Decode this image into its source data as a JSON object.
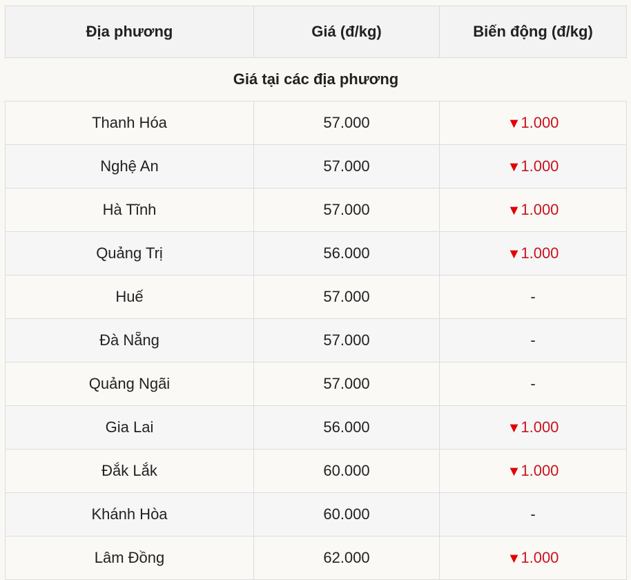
{
  "header": {
    "col1": "Địa phương",
    "col2": "Giá (đ/kg)",
    "col3": "Biến động (đ/kg)"
  },
  "section_title": "Giá tại các địa phương",
  "colors": {
    "down": "#e00000"
  },
  "rows": [
    {
      "place": "Thanh Hóa",
      "price": "57.000",
      "change": "1.000",
      "direction": "down"
    },
    {
      "place": "Nghệ An",
      "price": "57.000",
      "change": "1.000",
      "direction": "down"
    },
    {
      "place": "Hà Tĩnh",
      "price": "57.000",
      "change": "1.000",
      "direction": "down"
    },
    {
      "place": "Quảng Trị",
      "price": "56.000",
      "change": "1.000",
      "direction": "down"
    },
    {
      "place": "Huế",
      "price": "57.000",
      "change": "-",
      "direction": "none"
    },
    {
      "place": "Đà Nẵng",
      "price": "57.000",
      "change": "-",
      "direction": "none"
    },
    {
      "place": "Quảng Ngãi",
      "price": "57.000",
      "change": "-",
      "direction": "none"
    },
    {
      "place": "Gia Lai",
      "price": "56.000",
      "change": "1.000",
      "direction": "down"
    },
    {
      "place": "Đắk Lắk",
      "price": "60.000",
      "change": "1.000",
      "direction": "down"
    },
    {
      "place": "Khánh Hòa",
      "price": "60.000",
      "change": "-",
      "direction": "none"
    },
    {
      "place": "Lâm Đồng",
      "price": "62.000",
      "change": "1.000",
      "direction": "down"
    }
  ]
}
